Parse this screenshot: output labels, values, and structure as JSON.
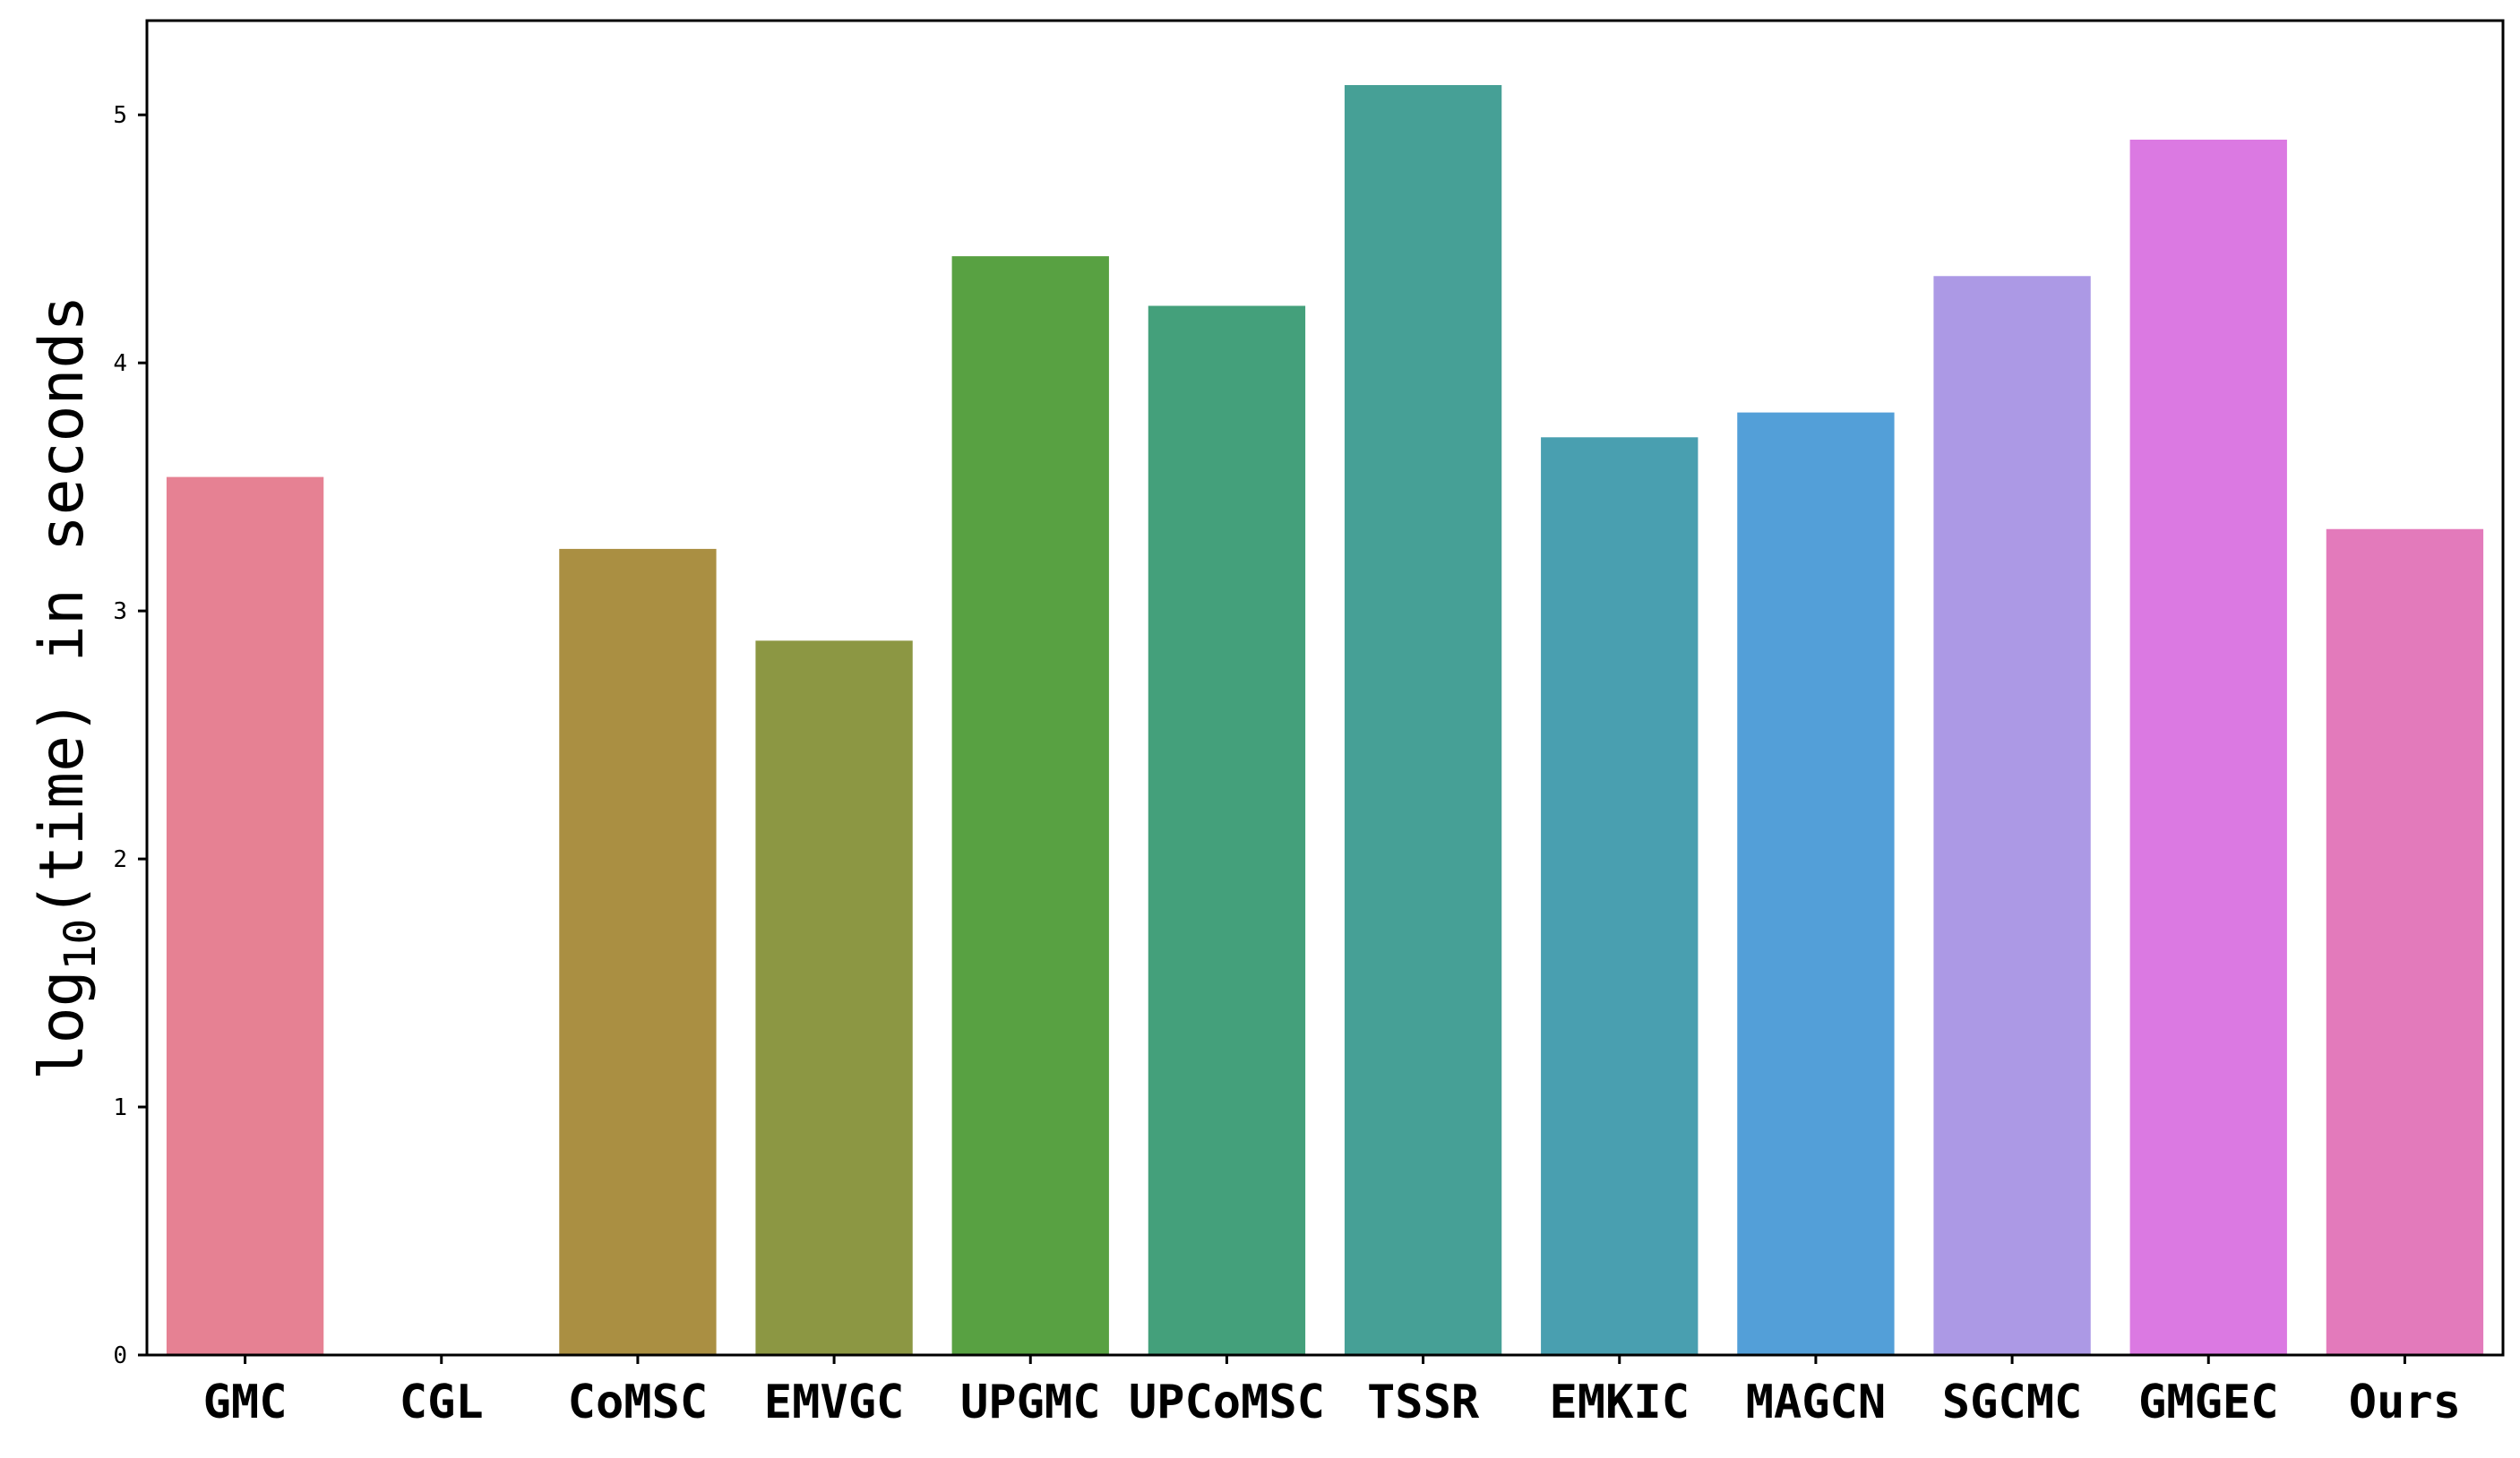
{
  "chart_data": {
    "type": "bar",
    "title": "",
    "xlabel": "",
    "ylabel": {
      "prefix": "log",
      "subscript": "10",
      "suffix": "(time) in seconds"
    },
    "ylim": [
      0,
      5.38
    ],
    "yticks": [
      "0",
      "1",
      "2",
      "3",
      "4",
      "5"
    ],
    "grid": false,
    "categories": [
      "GMC",
      "CGL",
      "CoMSC",
      "EMVGC",
      "UPGMC",
      "UPCoMSC",
      "TSSR",
      "EMKIC",
      "MAGCN",
      "SGCMC",
      "GMGEC",
      "Ours"
    ],
    "values": [
      3.54,
      0,
      3.25,
      2.88,
      4.43,
      4.23,
      5.12,
      3.7,
      3.8,
      4.35,
      4.9,
      3.33
    ],
    "colors": [
      "#e68193",
      "#db8a6c",
      "#aa8f42",
      "#8c9743",
      "#58a142",
      "#44a07b",
      "#46a096",
      "#499fb0",
      "#539fd8",
      "#ac99e5",
      "#db79e2",
      "#e37abb"
    ]
  }
}
